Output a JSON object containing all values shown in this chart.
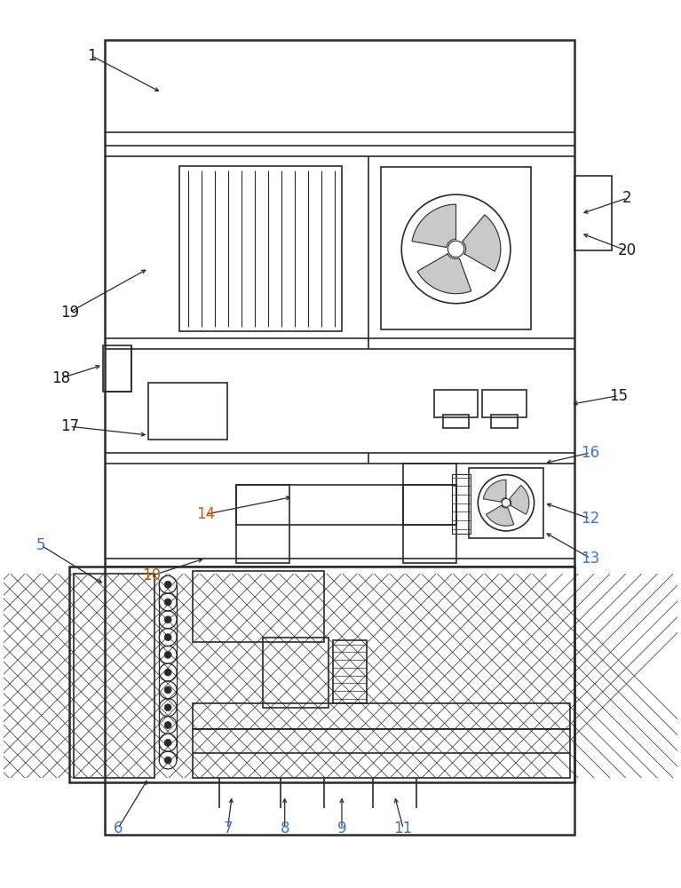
{
  "background_color": "#ffffff",
  "line_color": "#2a2a2a",
  "figsize": [
    7.67,
    10.0
  ],
  "dpi": 100
}
